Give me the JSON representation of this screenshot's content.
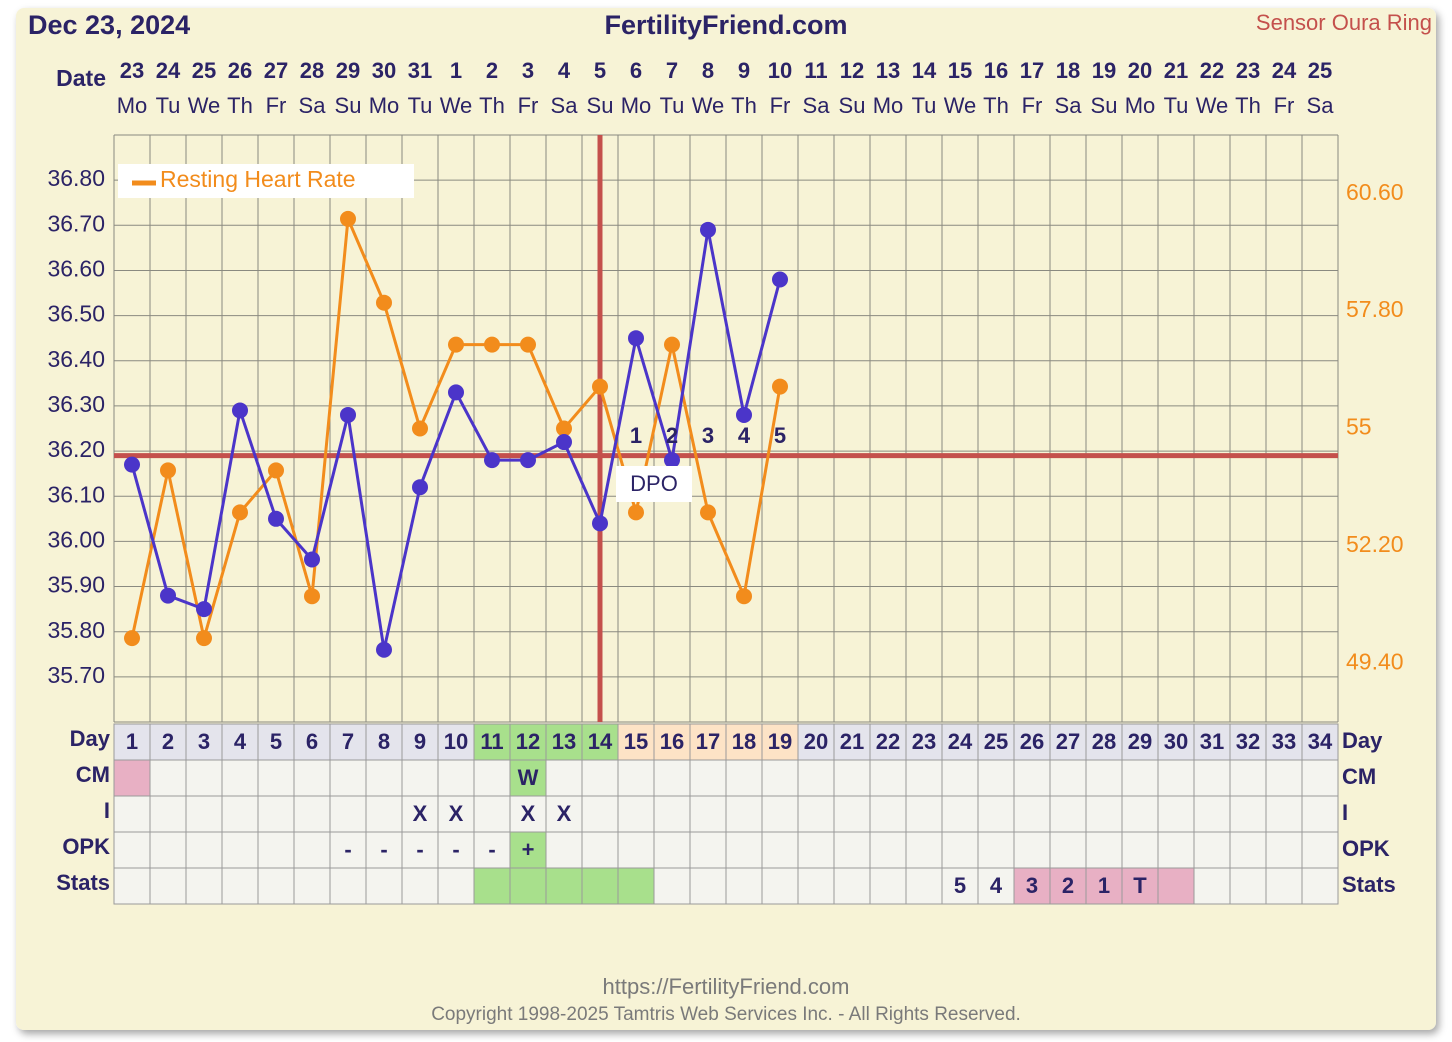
{
  "header": {
    "date": "Dec 23, 2024",
    "site": "FertilityFriend.com",
    "sensor": "Sensor Oura Ring"
  },
  "chart_data": {
    "type": "line",
    "date_label": "Date",
    "categories": [
      "23",
      "24",
      "25",
      "26",
      "27",
      "28",
      "29",
      "30",
      "31",
      "1",
      "2",
      "3",
      "4",
      "5",
      "6",
      "7",
      "8",
      "9",
      "10",
      "11",
      "12",
      "13",
      "14",
      "15",
      "16",
      "17",
      "18",
      "19",
      "20",
      "21",
      "22",
      "23",
      "24",
      "25"
    ],
    "weekdays": [
      "Mo",
      "Tu",
      "We",
      "Th",
      "Fr",
      "Sa",
      "Su",
      "Mo",
      "Tu",
      "We",
      "Th",
      "Fr",
      "Sa",
      "Su",
      "Mo",
      "Tu",
      "We",
      "Th",
      "Fr",
      "Sa",
      "Su",
      "Mo",
      "Tu",
      "We",
      "Th",
      "Fr",
      "Sa",
      "Su",
      "Mo",
      "Tu",
      "We",
      "Th",
      "Fr",
      "Sa"
    ],
    "ylim": [
      35.6,
      36.9
    ],
    "yticks": [
      {
        "value": 35.7,
        "label": "35.70"
      },
      {
        "value": 35.8,
        "label": "35.80"
      },
      {
        "value": 35.9,
        "label": "35.90"
      },
      {
        "value": 36.0,
        "label": "36.00"
      },
      {
        "value": 36.1,
        "label": "36.10"
      },
      {
        "value": 36.2,
        "label": "36.20"
      },
      {
        "value": 36.3,
        "label": "36.30"
      },
      {
        "value": 36.4,
        "label": "36.40"
      },
      {
        "value": 36.5,
        "label": "36.50"
      },
      {
        "value": 36.6,
        "label": "36.60"
      },
      {
        "value": 36.7,
        "label": "36.70"
      },
      {
        "value": 36.8,
        "label": "36.80"
      }
    ],
    "y2lim": [
      48,
      62
    ],
    "y2ticks": [
      {
        "value": 49.4,
        "label": "49.40"
      },
      {
        "value": 52.2,
        "label": "52.20"
      },
      55,
      {
        "value": 57.8,
        "label": "57.80"
      },
      {
        "value": 60.6,
        "label": "60.60"
      }
    ],
    "grid": true,
    "legend": "top-left",
    "series": [
      {
        "name": "Resting Heart Rate",
        "color": "#f28c1c",
        "axis": "y2",
        "values": [
          50,
          54,
          50,
          53,
          54,
          51,
          60,
          58,
          55,
          57,
          57,
          57,
          55,
          56,
          53,
          57,
          53,
          51,
          56,
          null,
          null,
          null,
          null,
          null,
          null,
          null,
          null,
          null,
          null,
          null,
          null,
          null,
          null,
          null
        ]
      },
      {
        "color": "#4b35c9",
        "values": [
          36.17,
          35.88,
          35.85,
          36.29,
          36.05,
          35.96,
          36.28,
          35.76,
          36.12,
          36.33,
          36.18,
          36.18,
          36.22,
          36.04,
          36.45,
          36.18,
          36.69,
          36.28,
          36.58,
          null,
          null,
          null,
          null,
          null,
          null,
          null,
          null,
          null,
          null,
          null,
          null,
          null,
          null,
          null
        ]
      }
    ],
    "coverline": 36.19,
    "line_color": "#c4504c",
    "ovulation_day": 14,
    "dpo": {
      "label": "DPO",
      "start_day": 15,
      "values": [
        1,
        2,
        3,
        4,
        5
      ]
    }
  },
  "table": {
    "cell_color": "#f4f4ef",
    "rows": [
      {
        "label": "Day",
        "cells": [
          1,
          2,
          3,
          4,
          5,
          6,
          7,
          8,
          9,
          10,
          11,
          12,
          13,
          14,
          15,
          16,
          17,
          18,
          19,
          20,
          21,
          22,
          23,
          24,
          25,
          26,
          27,
          28,
          29,
          30,
          31,
          32,
          33,
          34
        ],
        "colors": [
          "#e4e4ec",
          "#e4e4ec",
          "#e4e4ec",
          "#e4e4ec",
          "#e4e4ec",
          "#e4e4ec",
          "#e4e4ec",
          "#e4e4ec",
          "#e4e4ec",
          "#e4e4ec",
          "#a8e08c",
          "#a8e08c",
          "#a8e08c",
          "#a8e08c",
          "#fde3c6",
          "#fde3c6",
          "#fde3c6",
          "#fde3c6",
          "#fde3c6",
          "#e4e4ec",
          "#e4e4ec",
          "#e4e4ec",
          "#e4e4ec",
          "#e4e4ec",
          "#e4e4ec",
          "#e4e4ec",
          "#e4e4ec",
          "#e4e4ec",
          "#e4e4ec",
          "#e4e4ec",
          "#e4e4ec",
          "#e4e4ec",
          "#e4e4ec",
          "#e4e4ec"
        ]
      },
      {
        "label": "CM",
        "cells": [
          null,
          null,
          null,
          null,
          null,
          null,
          null,
          null,
          null,
          null,
          null,
          "W",
          null,
          null,
          null,
          null,
          null,
          null,
          null,
          null,
          null,
          null,
          null,
          null,
          null,
          null,
          null,
          null,
          null,
          null,
          null,
          null,
          null,
          null
        ],
        "colors": [
          "#e8b0c4",
          null,
          null,
          null,
          null,
          null,
          null,
          null,
          null,
          null,
          null,
          "#a8e08c",
          null,
          null,
          null,
          null,
          null,
          null,
          null,
          null,
          null,
          null,
          null,
          null,
          null,
          null,
          null,
          null,
          null,
          null,
          null,
          null,
          null,
          null
        ]
      },
      {
        "label": "I",
        "cells": [
          null,
          null,
          null,
          null,
          null,
          null,
          null,
          null,
          "X",
          "X",
          null,
          "X",
          "X",
          null,
          null,
          null,
          null,
          null,
          null,
          null,
          null,
          null,
          null,
          null,
          null,
          null,
          null,
          null,
          null,
          null,
          null,
          null,
          null,
          null
        ]
      },
      {
        "label": "OPK",
        "cells": [
          null,
          null,
          null,
          null,
          null,
          null,
          "-",
          "-",
          "-",
          "-",
          "-",
          "+",
          null,
          null,
          null,
          null,
          null,
          null,
          null,
          null,
          null,
          null,
          null,
          null,
          null,
          null,
          null,
          null,
          null,
          null,
          null,
          null,
          null,
          null
        ],
        "colors": [
          null,
          null,
          null,
          null,
          null,
          null,
          null,
          null,
          null,
          null,
          null,
          "#a8e08c",
          null,
          null,
          null,
          null,
          null,
          null,
          null,
          null,
          null,
          null,
          null,
          null,
          null,
          null,
          null,
          null,
          null,
          null,
          null,
          null,
          null,
          null
        ]
      },
      {
        "label": "Stats",
        "cells": [
          null,
          null,
          null,
          null,
          null,
          null,
          null,
          null,
          null,
          null,
          null,
          null,
          null,
          null,
          null,
          null,
          null,
          null,
          null,
          null,
          null,
          null,
          null,
          "5",
          "4",
          "3",
          "2",
          "1",
          "T",
          null,
          null,
          null,
          null,
          null
        ],
        "colors": [
          null,
          null,
          null,
          null,
          null,
          null,
          null,
          null,
          null,
          null,
          "#a8e08c",
          "#a8e08c",
          "#a8e08c",
          "#a8e08c",
          "#a8e08c",
          null,
          null,
          null,
          null,
          null,
          null,
          null,
          null,
          null,
          null,
          "#e8b0c4",
          "#e8b0c4",
          "#e8b0c4",
          "#e8b0c4",
          "#e8b0c4",
          null,
          null,
          null,
          null
        ]
      }
    ]
  },
  "footer": {
    "url": "https://FertilityFriend.com",
    "copyright": "Copyright 1998-2025 Tamtris Web Services Inc. - All Rights Reserved."
  }
}
